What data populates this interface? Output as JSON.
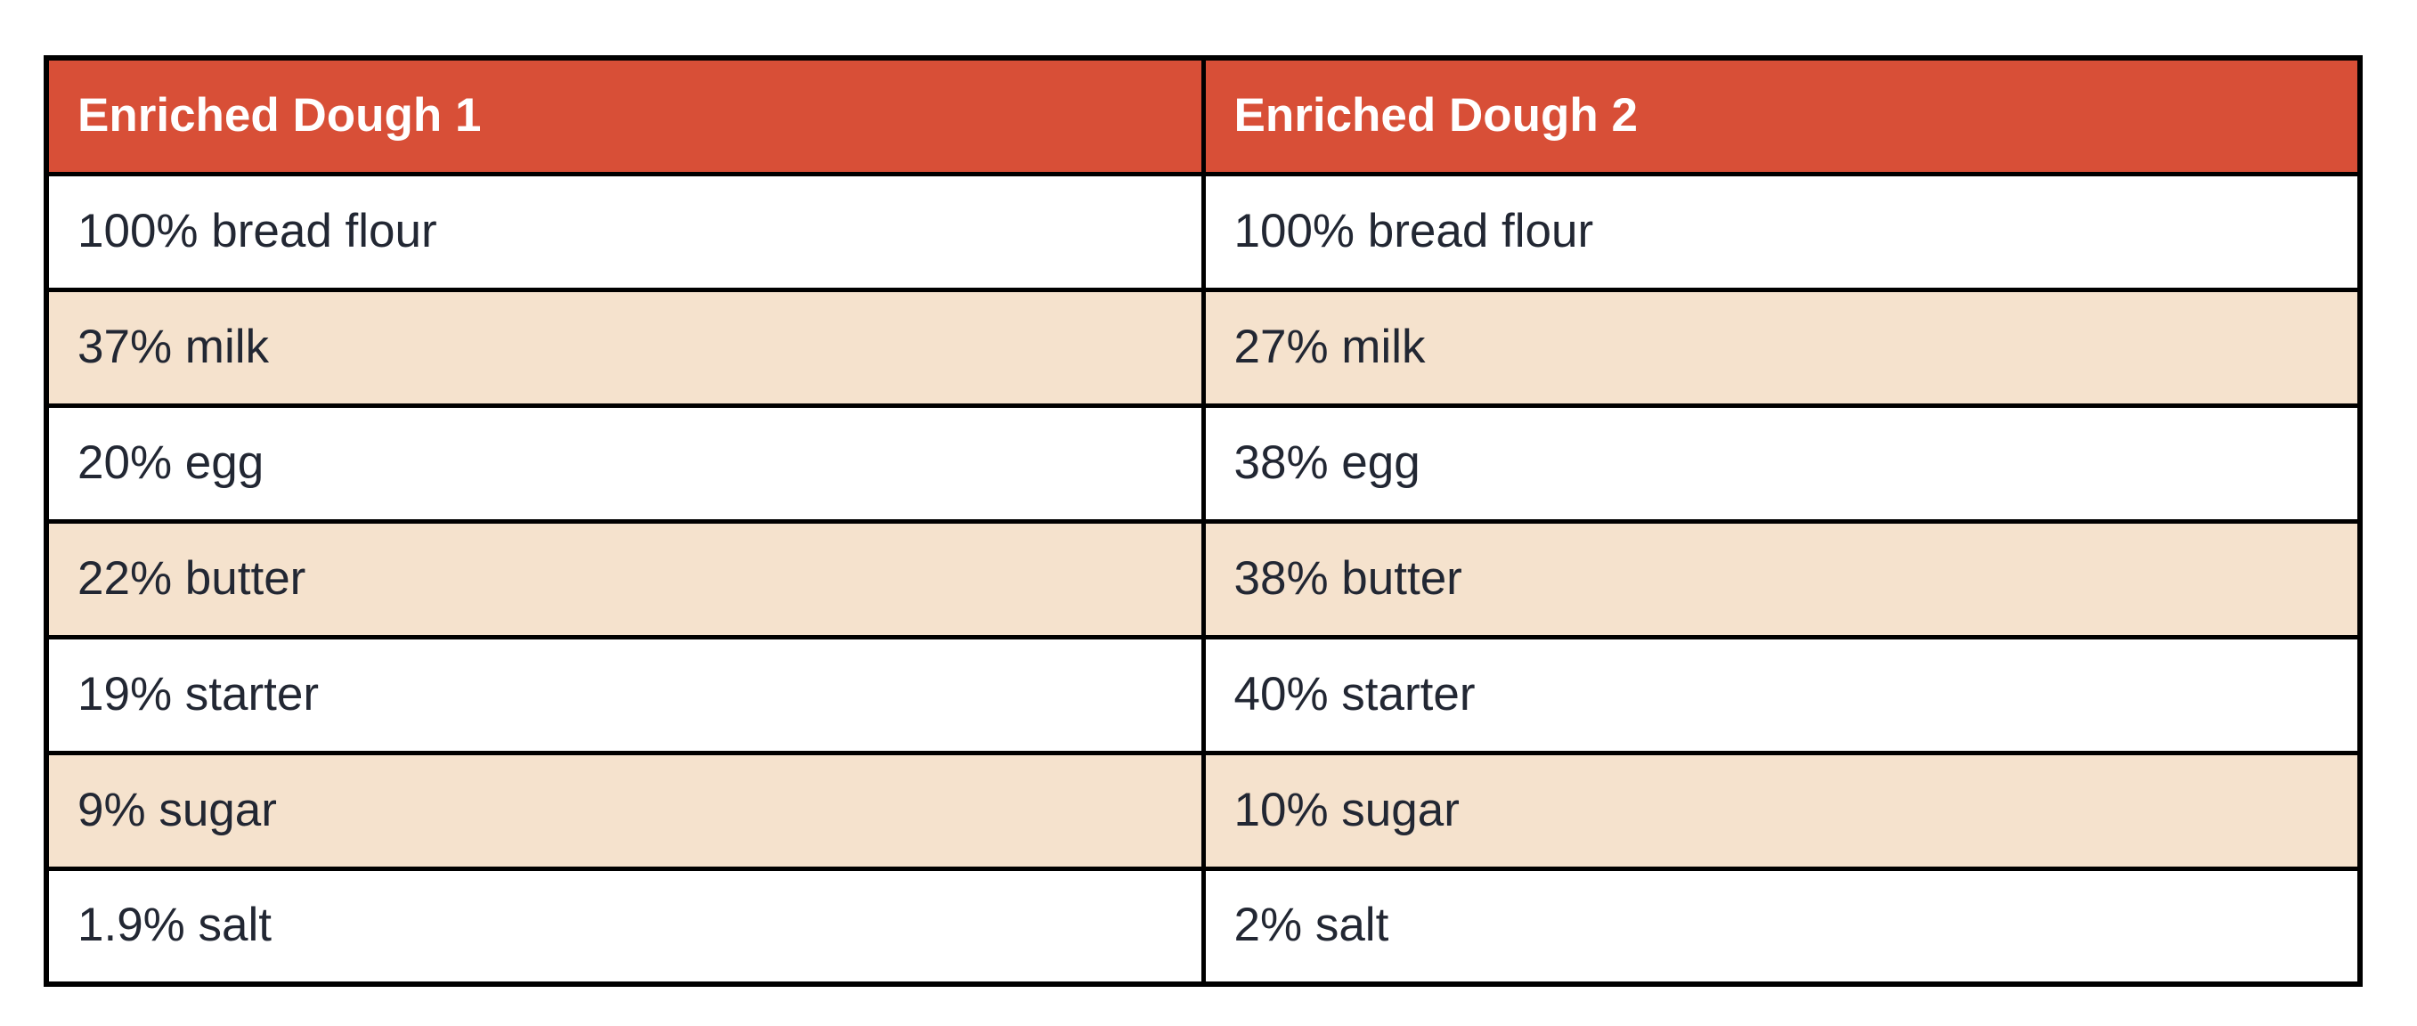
{
  "colors": {
    "header_bg": "#D84F37",
    "header_text": "#FFFFFF",
    "row_alt_bg": "#F5E2CD",
    "row_bg": "#FFFFFF",
    "border": "#000000",
    "text": "#222733",
    "page_bg": "#FFFFFF"
  },
  "table": {
    "headers": [
      "Enriched Dough 1",
      "Enriched Dough 2"
    ],
    "rows": [
      [
        "100% bread flour",
        "100% bread flour"
      ],
      [
        "37% milk",
        "27% milk"
      ],
      [
        "20% egg",
        "38% egg"
      ],
      [
        "22% butter",
        "38% butter"
      ],
      [
        "19% starter",
        "40% starter"
      ],
      [
        "9% sugar",
        "10% sugar"
      ],
      [
        "1.9% salt",
        "2% salt"
      ]
    ]
  },
  "chart_data": {
    "type": "table",
    "title": "",
    "columns": [
      "Enriched Dough 1",
      "Enriched Dough 2"
    ],
    "rows": [
      [
        "100% bread flour",
        "100% bread flour"
      ],
      [
        "37% milk",
        "27% milk"
      ],
      [
        "20% egg",
        "38% egg"
      ],
      [
        "22% butter",
        "38% butter"
      ],
      [
        "19% starter",
        "40% starter"
      ],
      [
        "9% sugar",
        "10% sugar"
      ],
      [
        "1.9% salt",
        "2% salt"
      ]
    ]
  }
}
